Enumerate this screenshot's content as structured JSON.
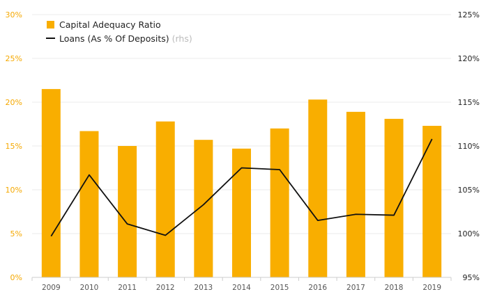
{
  "chart_data": {
    "type": "bar+line",
    "categories": [
      "2009",
      "2010",
      "2011",
      "2012",
      "2013",
      "2014",
      "2015",
      "2016",
      "2017",
      "2018",
      "2019"
    ],
    "series": [
      {
        "name": "Capital Adequacy Ratio",
        "type": "bar",
        "axis": "left",
        "color": "#F9AE00",
        "values": [
          21.5,
          16.7,
          15.0,
          17.8,
          15.7,
          14.7,
          17.0,
          20.3,
          18.9,
          18.1,
          17.3
        ]
      },
      {
        "name": "Loans (As % Of Deposits)",
        "name_suffix": "(rhs)",
        "type": "line",
        "axis": "right",
        "color": "#111111",
        "values": [
          99.7,
          106.7,
          101.1,
          99.8,
          103.3,
          107.5,
          107.3,
          101.5,
          102.2,
          102.1,
          110.8
        ]
      }
    ],
    "y_left": {
      "ticks": [
        "0%",
        "5%",
        "10%",
        "15%",
        "20%",
        "25%",
        "30%"
      ],
      "range": [
        0,
        30
      ],
      "color": "#F5A800"
    },
    "y_right": {
      "ticks": [
        "95%",
        "100%",
        "105%",
        "110%",
        "115%",
        "120%",
        "125%"
      ],
      "range": [
        95,
        125
      ],
      "color": "#222222"
    },
    "grid": true,
    "legend_position": "top-left"
  }
}
